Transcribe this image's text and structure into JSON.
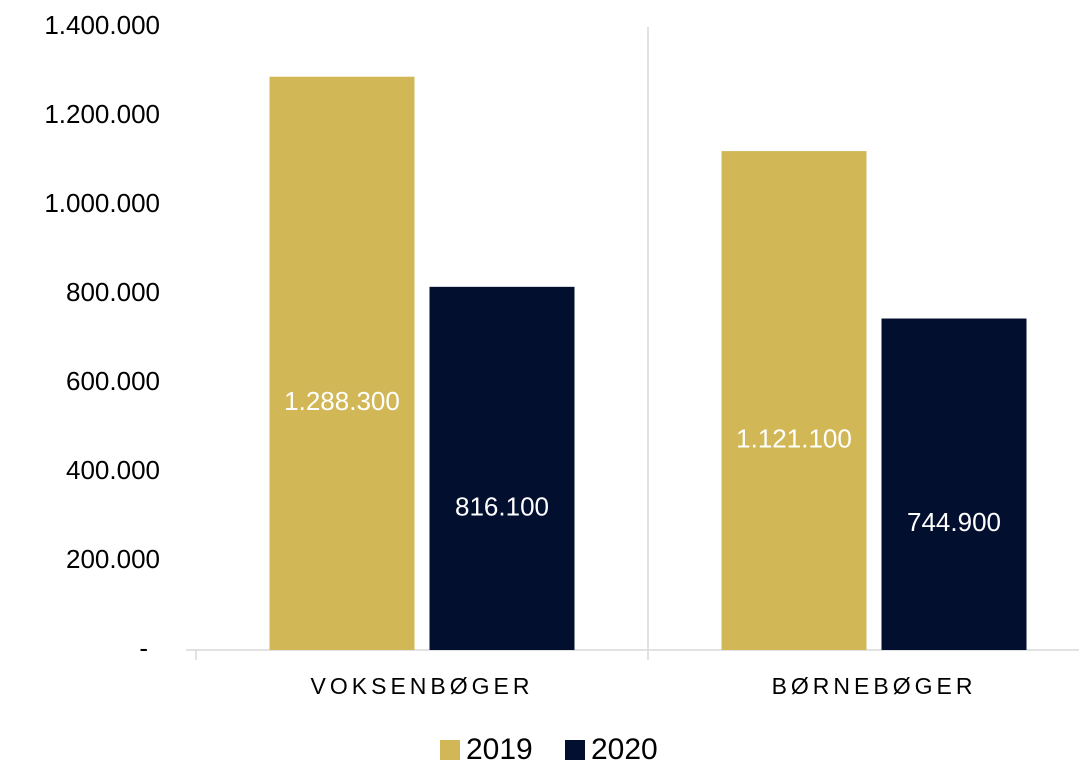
{
  "chart_data": {
    "type": "bar",
    "categories": [
      "VOKSENBØGER",
      "BØRNEBØGER"
    ],
    "series": [
      {
        "name": "2019",
        "color": "#d1b756",
        "values": [
          1288300,
          1121100
        ],
        "value_labels": [
          "1.288.300",
          "1.121.100"
        ]
      },
      {
        "name": "2020",
        "color": "#020f2e",
        "values": [
          816100,
          744900
        ],
        "value_labels": [
          "816.100",
          "744.900"
        ]
      }
    ],
    "ylim": [
      0,
      1400000
    ],
    "yticks": [
      {
        "value": 0,
        "label": "-"
      },
      {
        "value": 200000,
        "label": "200.000"
      },
      {
        "value": 400000,
        "label": "400.000"
      },
      {
        "value": 600000,
        "label": "600.000"
      },
      {
        "value": 800000,
        "label": "800.000"
      },
      {
        "value": 1000000,
        "label": "1.000.000"
      },
      {
        "value": 1200000,
        "label": "1.200.000"
      },
      {
        "value": 1400000,
        "label": "1.400.000"
      }
    ],
    "grid": false,
    "legend": "bottom"
  }
}
